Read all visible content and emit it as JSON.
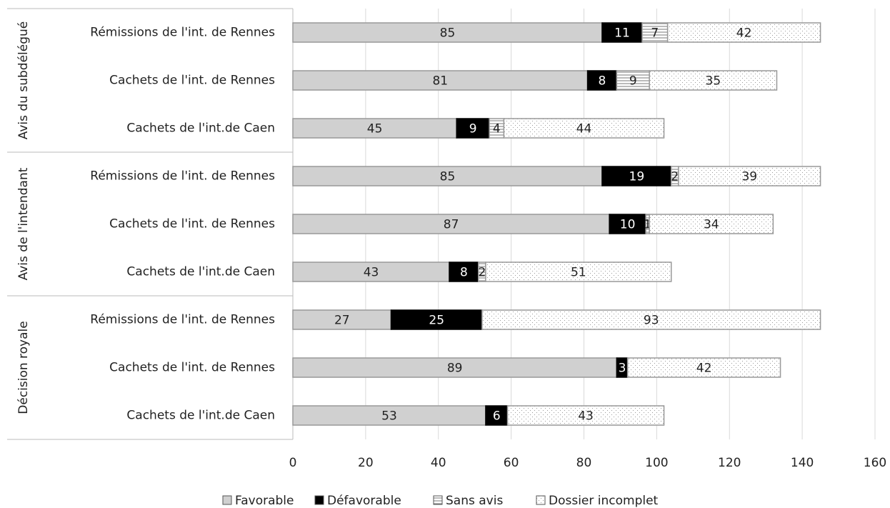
{
  "chart_data": {
    "type": "stacked-bar-horizontal",
    "groups": [
      {
        "name": "Avis du subdélégué",
        "categories": [
          "Rémissions de l'int. de Rennes",
          "Cachets de l'int. de Rennes",
          "Cachets de l'int.de Caen"
        ]
      },
      {
        "name": "Avis de l'intendant",
        "categories": [
          "Rémissions de l'int. de Rennes",
          "Cachets de l'int. de Rennes",
          "Cachets de l'int.de Caen"
        ]
      },
      {
        "name": "Décision royale",
        "categories": [
          "Rémissions de l'int. de Rennes",
          "Cachets de l'int. de Rennes",
          "Cachets de l'int.de Caen"
        ]
      }
    ],
    "series": [
      {
        "name": "Favorable",
        "color": "#d0d0d0",
        "pattern": "solid",
        "values": [
          85,
          81,
          45,
          85,
          87,
          43,
          27,
          89,
          53
        ]
      },
      {
        "name": "Défavorable",
        "color": "#000000",
        "pattern": "solid",
        "values": [
          11,
          8,
          9,
          19,
          10,
          8,
          25,
          3,
          6
        ]
      },
      {
        "name": "Sans avis",
        "color": "#ffffff",
        "pattern": "stripes",
        "values": [
          7,
          9,
          4,
          2,
          1,
          2,
          null,
          null,
          null
        ]
      },
      {
        "name": "Dossier incomplet",
        "color": "#ffffff",
        "pattern": "dots",
        "values": [
          42,
          35,
          44,
          39,
          34,
          51,
          93,
          42,
          43
        ]
      }
    ],
    "xlim": [
      0,
      160
    ],
    "xticks": [
      0,
      20,
      40,
      60,
      80,
      100,
      120,
      140,
      160
    ],
    "grid": true,
    "legend": "bottom"
  }
}
